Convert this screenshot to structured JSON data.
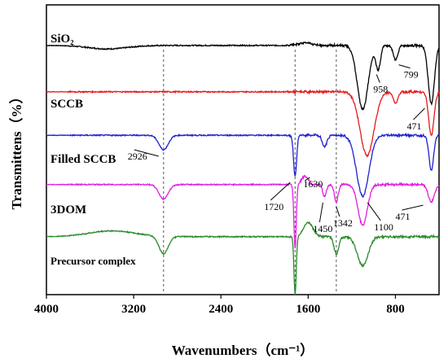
{
  "chart_data": {
    "type": "line",
    "xlabel": "Wavenumbers（cm⁻¹）",
    "ylabel": "Transmittens（%）",
    "xlim": [
      4000,
      400
    ],
    "x_reversed": true,
    "x_ticks": [
      4000,
      3200,
      2400,
      1600,
      800
    ],
    "x_tick_labels": [
      "4000",
      "3200",
      "2400",
      "1600",
      "800"
    ],
    "y_ticks_shown": false,
    "grid": false,
    "reference_lines_cm": [
      2926,
      1720,
      1342
    ],
    "series": [
      {
        "name": "SiO₂",
        "color": "#000000",
        "baseline": 0.86,
        "features": [
          {
            "x": 3440,
            "d": -0.012,
            "w": 250
          },
          {
            "x": 1630,
            "d": 0.01,
            "w": 80
          },
          {
            "x": 1100,
            "d": -0.22,
            "w": 70
          },
          {
            "x": 958,
            "d": -0.08,
            "w": 30
          },
          {
            "x": 799,
            "d": -0.05,
            "w": 30
          },
          {
            "x": 471,
            "d": -0.2,
            "w": 40
          }
        ]
      },
      {
        "name": "SCCB",
        "color": "#e41a1c",
        "baseline": 0.7,
        "features": [
          {
            "x": 1060,
            "d": -0.22,
            "w": 90
          },
          {
            "x": 799,
            "d": -0.04,
            "w": 30
          },
          {
            "x": 471,
            "d": -0.15,
            "w": 35
          }
        ]
      },
      {
        "name": "Filled SCCB",
        "color": "#1f1fd0",
        "baseline": 0.55,
        "features": [
          {
            "x": 2926,
            "d": -0.05,
            "w": 60
          },
          {
            "x": 1720,
            "d": -0.14,
            "w": 20
          },
          {
            "x": 1450,
            "d": -0.04,
            "w": 30
          },
          {
            "x": 1100,
            "d": -0.21,
            "w": 80
          },
          {
            "x": 471,
            "d": -0.12,
            "w": 30
          }
        ]
      },
      {
        "name": "3DOM",
        "color": "#e020e0",
        "baseline": 0.38,
        "features": [
          {
            "x": 2926,
            "d": -0.05,
            "w": 60
          },
          {
            "x": 1720,
            "d": -0.22,
            "w": 15
          },
          {
            "x": 1630,
            "d": 0.03,
            "w": 40
          },
          {
            "x": 1450,
            "d": -0.04,
            "w": 25
          },
          {
            "x": 1342,
            "d": -0.06,
            "w": 25
          },
          {
            "x": 1100,
            "d": -0.14,
            "w": 60
          },
          {
            "x": 471,
            "d": -0.06,
            "w": 40
          }
        ]
      },
      {
        "name": "Precursor complex",
        "color": "#2a8a2a",
        "baseline": 0.2,
        "features": [
          {
            "x": 3400,
            "d": 0.02,
            "w": 300
          },
          {
            "x": 2926,
            "d": -0.06,
            "w": 60
          },
          {
            "x": 1720,
            "d": -0.2,
            "w": 15
          },
          {
            "x": 1600,
            "d": 0.05,
            "w": 60
          },
          {
            "x": 1342,
            "d": -0.06,
            "w": 30
          },
          {
            "x": 1100,
            "d": -0.1,
            "w": 70
          }
        ]
      }
    ],
    "annotations": [
      {
        "text": "2926",
        "series": 2,
        "x": 2926
      },
      {
        "text": "1720",
        "series": 2,
        "x": 1720
      },
      {
        "text": "1100",
        "series": 2,
        "x": 1100
      },
      {
        "text": "958",
        "series": 0,
        "x": 958
      },
      {
        "text": "799",
        "series": 0,
        "x": 799
      },
      {
        "text": "471",
        "series": 0,
        "x": 471
      },
      {
        "text": "1630",
        "series": 3,
        "x": 1630
      },
      {
        "text": "1450",
        "series": 3,
        "x": 1450
      },
      {
        "text": "1342",
        "series": 3,
        "x": 1342
      },
      {
        "text": "471",
        "series": 3,
        "x": 471
      }
    ]
  }
}
